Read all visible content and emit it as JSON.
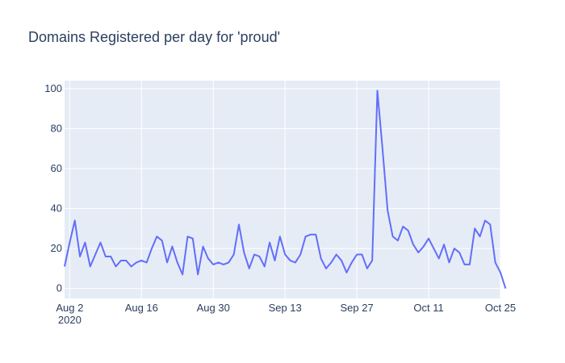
{
  "chart_data": {
    "type": "line",
    "title": "Domains Registered per day for 'proud'",
    "xlabel": "",
    "ylabel": "",
    "x_start": "2020-08-01",
    "x_end": "2020-10-25",
    "x_ticks": [
      {
        "date": "2020-08-02",
        "label": "Aug 2",
        "sublabel": "2020"
      },
      {
        "date": "2020-08-16",
        "label": "Aug 16",
        "sublabel": ""
      },
      {
        "date": "2020-08-30",
        "label": "Aug 30",
        "sublabel": ""
      },
      {
        "date": "2020-09-13",
        "label": "Sep 13",
        "sublabel": ""
      },
      {
        "date": "2020-09-27",
        "label": "Sep 27",
        "sublabel": ""
      },
      {
        "date": "2020-10-11",
        "label": "Oct 11",
        "sublabel": ""
      },
      {
        "date": "2020-10-25",
        "label": "Oct 25",
        "sublabel": ""
      }
    ],
    "ylim": [
      -5,
      104
    ],
    "y_ticks": [
      0,
      20,
      40,
      60,
      80,
      100
    ],
    "grid": true,
    "colors": {
      "line": "#636efa",
      "plot_bg": "#e5ecf6",
      "grid": "#ffffff",
      "text": "#2a3f5f"
    },
    "series": [
      {
        "values": [
          11,
          23,
          34,
          16,
          23,
          11,
          17,
          23,
          16,
          16,
          11,
          14,
          14,
          11,
          13,
          14,
          13,
          20,
          26,
          24,
          13,
          21,
          13,
          7,
          26,
          25,
          7,
          21,
          15,
          12,
          13,
          12,
          13,
          17,
          32,
          18,
          10,
          17,
          16,
          11,
          23,
          14,
          26,
          17,
          14,
          13,
          17,
          26,
          27,
          27,
          15,
          10,
          13,
          17,
          14,
          8,
          13,
          17,
          17,
          10,
          14,
          99,
          70,
          39,
          26,
          24,
          31,
          29,
          22,
          18,
          21,
          25,
          20,
          15,
          22,
          13,
          20,
          18,
          12,
          12,
          30,
          26,
          34,
          32,
          13,
          8,
          0
        ]
      }
    ]
  }
}
